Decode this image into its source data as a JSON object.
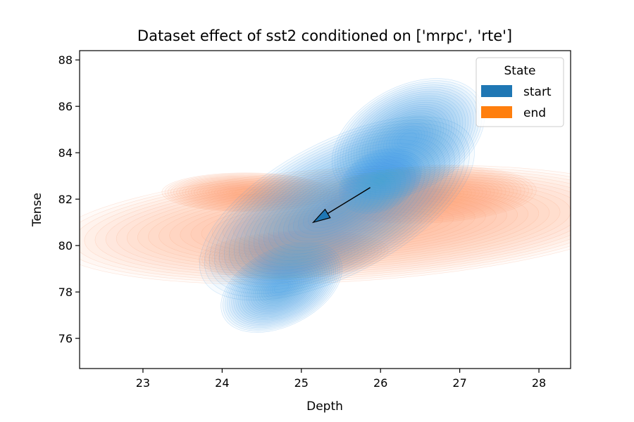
{
  "chart_data": {
    "type": "kde_contour",
    "title": "Dataset effect of sst2 conditioned on ['mrpc', 'rte']",
    "xlabel": "Depth",
    "ylabel": "Tense",
    "xlim": [
      22.2,
      28.4
    ],
    "ylim": [
      74.7,
      88.4
    ],
    "xticks": [
      23,
      24,
      25,
      26,
      27,
      28
    ],
    "yticks": [
      76,
      78,
      80,
      82,
      84,
      86,
      88
    ],
    "grid": false,
    "legend": {
      "title": "State",
      "placement": "top-right",
      "entries": [
        {
          "label": "start",
          "color": "#1f77b4"
        },
        {
          "label": "end",
          "color": "#ff7f0e"
        }
      ]
    },
    "series": [
      {
        "name": "start",
        "color": "#1f77b4",
        "fill_color": "#4aa3e8",
        "density_blobs": [
          {
            "cx": 25.45,
            "cy": 81.6,
            "sx": 1.55,
            "sy": 0.42,
            "angle": 61,
            "weight": 1.0
          },
          {
            "cx": 26.35,
            "cy": 84.6,
            "sx": 0.95,
            "sy": 0.36,
            "angle": 62,
            "weight": 0.9
          },
          {
            "cx": 24.75,
            "cy": 78.2,
            "sx": 0.85,
            "sy": 0.32,
            "angle": 60,
            "weight": 0.75
          },
          {
            "cx": 26.0,
            "cy": 82.8,
            "sx": 0.7,
            "sy": 0.3,
            "angle": 60,
            "weight": 0.6
          }
        ]
      },
      {
        "name": "end",
        "color": "#ff7f0e",
        "fill_color": "#f7a37a",
        "density_blobs": [
          {
            "cx": 25.6,
            "cy": 80.9,
            "sx": 1.7,
            "sy": 0.9,
            "angle": 12,
            "weight": 1.0
          },
          {
            "cx": 24.3,
            "cy": 82.3,
            "sx": 0.7,
            "sy": 0.55,
            "angle": 0,
            "weight": 0.65
          },
          {
            "cx": 26.6,
            "cy": 82.2,
            "sx": 0.8,
            "sy": 0.65,
            "angle": 8,
            "weight": 0.75
          },
          {
            "cx": 24.9,
            "cy": 79.6,
            "sx": 0.75,
            "sy": 0.55,
            "angle": 10,
            "weight": 0.7
          }
        ]
      }
    ],
    "annotations": [
      {
        "type": "arrow",
        "from": [
          25.87,
          82.5
        ],
        "to": [
          25.15,
          81.0
        ],
        "face_color": "#1f77b4",
        "edge_color": "#000000"
      }
    ]
  }
}
